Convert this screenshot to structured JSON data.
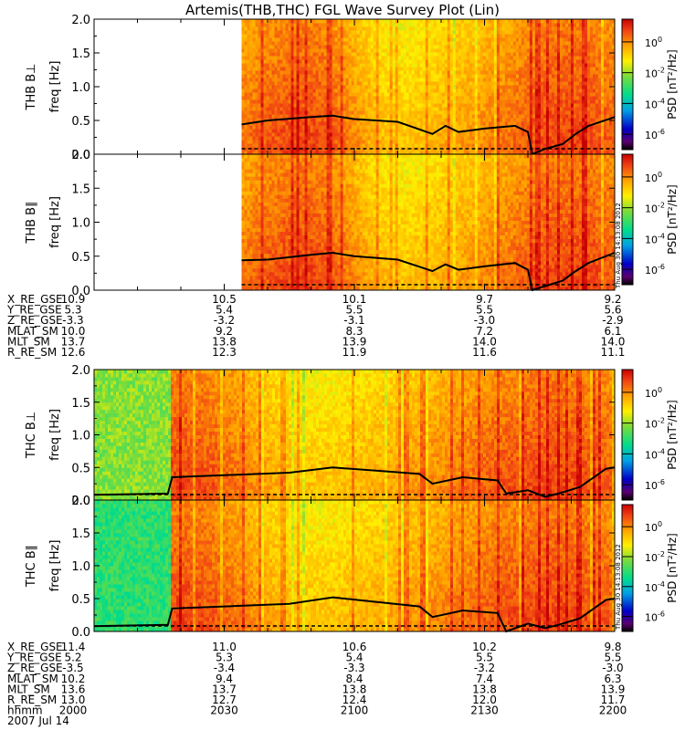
{
  "title": "Artemis(THB,THC) FGL Wave Survey Plot (Lin)",
  "colorbar": {
    "label": "PSD [nT²/Hz]",
    "ticks": [
      {
        "base": "10",
        "exp": "0"
      },
      {
        "base": "10",
        "exp": "-2"
      },
      {
        "base": "10",
        "exp": "-4"
      },
      {
        "base": "10",
        "exp": "-6"
      }
    ]
  },
  "timestamp": "Thu Aug 30 14:13:08 2012",
  "ytick_labels": [
    "0.0",
    "0.5",
    "1.0",
    "1.5",
    "2.0"
  ],
  "ylabel": "freq [Hz]",
  "date": "2007 Jul 14",
  "orbit_tables": [
    {
      "rows": [
        {
          "label": "X_RE_GSE",
          "values": [
            "10.9",
            "10.5",
            "10.1",
            "9.7",
            "9.2"
          ]
        },
        {
          "label": "Y_RE_GSE",
          "values": [
            "5.3",
            "5.4",
            "5.5",
            "5.5",
            "5.6"
          ]
        },
        {
          "label": "Z_RE_GSE",
          "values": [
            "-3.3",
            "-3.2",
            "-3.1",
            "-3.0",
            "-2.9"
          ]
        },
        {
          "label": "MLAT_SM",
          "values": [
            "10.0",
            "9.2",
            "8.3",
            "7.2",
            "6.1"
          ]
        },
        {
          "label": "MLT_SM",
          "values": [
            "13.7",
            "13.8",
            "13.9",
            "14.0",
            "14.0"
          ]
        },
        {
          "label": "R_RE_SM",
          "values": [
            "12.6",
            "12.3",
            "11.9",
            "11.6",
            "11.1"
          ]
        }
      ]
    },
    {
      "rows": [
        {
          "label": "X_RE_GSE",
          "values": [
            "11.4",
            "11.0",
            "10.6",
            "10.2",
            "9.8"
          ]
        },
        {
          "label": "Y_RE_GSE",
          "values": [
            "5.2",
            "5.3",
            "5.4",
            "5.5",
            "5.5"
          ]
        },
        {
          "label": "Z_RE_GSE",
          "values": [
            "-3.5",
            "-3.4",
            "-3.3",
            "-3.2",
            "-3.0"
          ]
        },
        {
          "label": "MLAT_SM",
          "values": [
            "10.2",
            "9.4",
            "8.4",
            "7.4",
            "6.3"
          ]
        },
        {
          "label": "MLT_SM",
          "values": [
            "13.6",
            "13.7",
            "13.8",
            "13.8",
            "13.9"
          ]
        },
        {
          "label": "R_RE_SM",
          "values": [
            "13.0",
            "12.7",
            "12.4",
            "12.0",
            "11.7"
          ]
        },
        {
          "label": "hhmm",
          "values": [
            "2000",
            "2030",
            "2100",
            "2130",
            "2200"
          ]
        }
      ]
    }
  ],
  "chart_data": [
    {
      "type": "heatmap",
      "title": "THB B⊥",
      "ylabel": "freq [Hz]",
      "ylim": [
        0,
        2.0
      ],
      "x_unit": "hhmm",
      "xlim": [
        "2000",
        "2200"
      ],
      "data_starts_at": "2034",
      "colorscale": {
        "type": "log",
        "range": [
          1e-07,
          30.0
        ]
      },
      "overlay_line": {
        "x": [
          "2034",
          "2040",
          "2050",
          "2055",
          "2100",
          "2110",
          "2118",
          "2121",
          "2124",
          "2130",
          "2137",
          "2140",
          "2141",
          "2144",
          "2148",
          "2151",
          "2154",
          "2200"
        ],
        "y": [
          0.44,
          0.5,
          0.55,
          0.57,
          0.52,
          0.48,
          0.3,
          0.42,
          0.33,
          0.38,
          0.42,
          0.33,
          0.0,
          0.08,
          0.15,
          0.3,
          0.42,
          0.55
        ]
      }
    },
    {
      "type": "heatmap",
      "title": "THB B∥",
      "ylabel": "freq [Hz]",
      "ylim": [
        0,
        2.0
      ],
      "x_unit": "hhmm",
      "xlim": [
        "2000",
        "2200"
      ],
      "data_starts_at": "2034",
      "colorscale": {
        "type": "log",
        "range": [
          1e-07,
          30.0
        ]
      },
      "overlay_line": {
        "x": [
          "2034",
          "2040",
          "2050",
          "2055",
          "2100",
          "2110",
          "2118",
          "2121",
          "2124",
          "2130",
          "2137",
          "2140",
          "2141",
          "2144",
          "2148",
          "2151",
          "2154",
          "2200"
        ],
        "y": [
          0.44,
          0.45,
          0.52,
          0.55,
          0.5,
          0.45,
          0.28,
          0.38,
          0.3,
          0.35,
          0.4,
          0.3,
          0.0,
          0.06,
          0.14,
          0.28,
          0.4,
          0.55
        ]
      }
    },
    {
      "type": "heatmap",
      "title": "THC B⊥",
      "ylabel": "freq [Hz]",
      "ylim": [
        0,
        2.0
      ],
      "x_unit": "hhmm",
      "xlim": [
        "2000",
        "2200"
      ],
      "colorscale": {
        "type": "log",
        "range": [
          1e-07,
          30.0
        ]
      },
      "overlay_line": {
        "x": [
          "2000",
          "2017",
          "2018",
          "2030",
          "2045",
          "2055",
          "2105",
          "2115",
          "2118",
          "2125",
          "2133",
          "2135",
          "2140",
          "2144",
          "2147",
          "2152",
          "2158",
          "2200"
        ],
        "y": [
          0.08,
          0.1,
          0.35,
          0.38,
          0.42,
          0.5,
          0.45,
          0.4,
          0.25,
          0.35,
          0.3,
          0.1,
          0.15,
          0.05,
          0.1,
          0.2,
          0.48,
          0.5
        ]
      }
    },
    {
      "type": "heatmap",
      "title": "THC B∥",
      "ylabel": "freq [Hz]",
      "ylim": [
        0,
        2.0
      ],
      "x_unit": "hhmm",
      "xlim": [
        "2000",
        "2200"
      ],
      "colorscale": {
        "type": "log",
        "range": [
          1e-07,
          30.0
        ]
      },
      "overlay_line": {
        "x": [
          "2000",
          "2017",
          "2018",
          "2030",
          "2045",
          "2055",
          "2105",
          "2115",
          "2118",
          "2125",
          "2133",
          "2135",
          "2140",
          "2144",
          "2147",
          "2152",
          "2158",
          "2200"
        ],
        "y": [
          0.08,
          0.1,
          0.35,
          0.38,
          0.42,
          0.52,
          0.45,
          0.38,
          0.22,
          0.32,
          0.28,
          0.0,
          0.12,
          0.05,
          0.1,
          0.2,
          0.48,
          0.5
        ]
      }
    }
  ]
}
